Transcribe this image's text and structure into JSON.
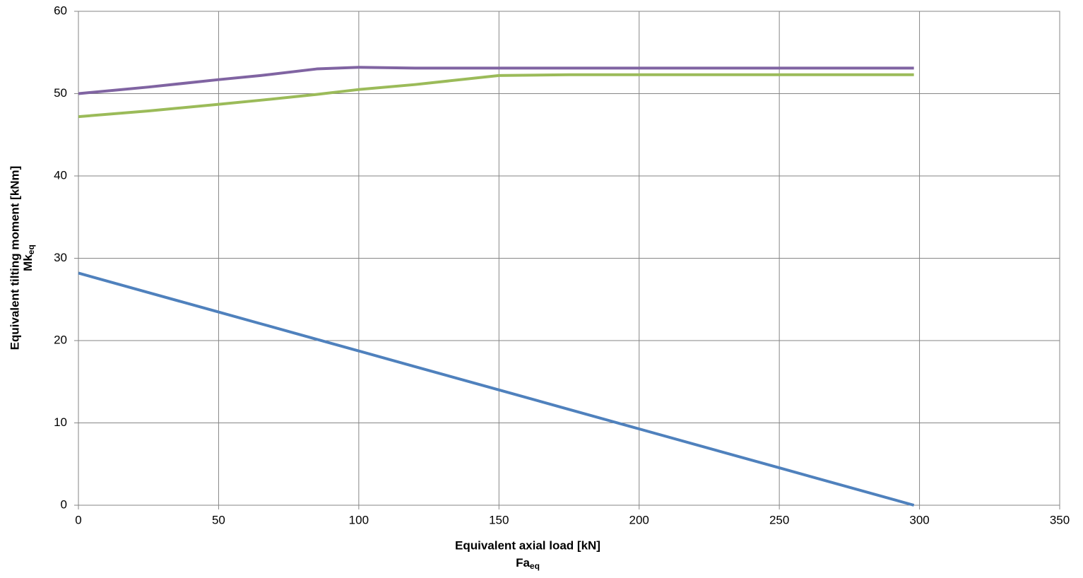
{
  "chart_data": {
    "type": "line",
    "xlabel": "Equivalent axial load [kN]",
    "xlabel_symbol": "Fa",
    "xlabel_subscript": "eq",
    "ylabel": "Equivalent tilting moment [kNm]",
    "ylabel_symbol": "Mk",
    "ylabel_subscript": "eq",
    "x": [
      0,
      25,
      50,
      65,
      85,
      100,
      120,
      150,
      175,
      200,
      250,
      298
    ],
    "series": [
      {
        "color": "#4f81bd",
        "values": [
          28.2,
          25.83,
          23.47,
          22.05,
          20.16,
          18.74,
          16.84,
          14.01,
          11.64,
          9.27,
          4.54,
          0
        ]
      },
      {
        "color": "#9bbb59",
        "values": [
          47.2,
          47.9,
          48.7,
          49.2,
          49.9,
          50.5,
          51.1,
          52.2,
          52.3,
          52.3,
          52.3,
          52.3
        ]
      },
      {
        "color": "#8064a2",
        "values": [
          50,
          50.8,
          51.7,
          52.2,
          53.0,
          53.2,
          53.1,
          53.1,
          53.1,
          53.1,
          53.1,
          53.1
        ]
      }
    ],
    "xlim": [
      0,
      350
    ],
    "xticks": [
      0,
      50,
      100,
      150,
      200,
      250,
      300,
      350
    ],
    "ylim": [
      0,
      60
    ],
    "yticks": [
      0,
      10,
      20,
      30,
      40,
      50,
      60
    ],
    "grid": true
  }
}
